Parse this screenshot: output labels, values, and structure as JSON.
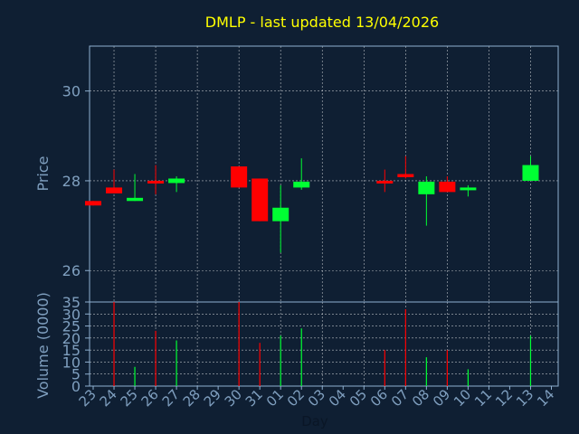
{
  "chart_data": {
    "type": "candlestick",
    "title": "DMLP - last updated 13/04/2026",
    "xlabel": "Day",
    "ylabel": "Price",
    "volume_label": "Volume (0000)",
    "grid": true,
    "price_ylim": [
      25.3,
      31.0
    ],
    "price_ticks": [
      "26",
      "28",
      "30"
    ],
    "volume_ylim": [
      0,
      35
    ],
    "volume_ticks": [
      "0",
      "5",
      "10",
      "15",
      "20",
      "25",
      "30",
      "35"
    ],
    "days": [
      "23",
      "24",
      "25",
      "26",
      "27",
      "28",
      "29",
      "30",
      "31",
      "01",
      "02",
      "03",
      "04",
      "05",
      "06",
      "07",
      "08",
      "09",
      "10",
      "11",
      "12",
      "13",
      "14"
    ],
    "candles": [
      {
        "day": "23",
        "open": 27.55,
        "close": 27.45,
        "high": 27.55,
        "low": 27.45,
        "volume": 0
      },
      {
        "day": "24",
        "open": 27.85,
        "close": 27.72,
        "high": 28.25,
        "low": 27.72,
        "volume": 35
      },
      {
        "day": "25",
        "open": 27.55,
        "close": 27.62,
        "high": 28.15,
        "low": 27.55,
        "volume": 8
      },
      {
        "day": "26",
        "open": 28.0,
        "close": 27.95,
        "high": 28.35,
        "low": 27.7,
        "volume": 23
      },
      {
        "day": "27",
        "open": 27.95,
        "close": 28.05,
        "high": 28.1,
        "low": 27.75,
        "volume": 19
      },
      {
        "day": "30",
        "open": 28.32,
        "close": 27.85,
        "high": 28.32,
        "low": 27.85,
        "volume": 35
      },
      {
        "day": "31",
        "open": 28.05,
        "close": 27.1,
        "high": 28.05,
        "low": 27.1,
        "volume": 18
      },
      {
        "day": "01",
        "open": 27.1,
        "close": 27.4,
        "high": 27.9,
        "low": 26.4,
        "volume": 21
      },
      {
        "day": "02",
        "open": 27.85,
        "close": 27.98,
        "high": 28.5,
        "low": 27.8,
        "volume": 24
      },
      {
        "day": "06",
        "open": 28.0,
        "close": 27.98,
        "high": 28.25,
        "low": 27.75,
        "volume": 15
      },
      {
        "day": "07",
        "open": 28.15,
        "close": 28.08,
        "high": 28.55,
        "low": 28.05,
        "volume": 32
      },
      {
        "day": "08",
        "open": 27.7,
        "close": 27.98,
        "high": 28.1,
        "low": 27.0,
        "volume": 12
      },
      {
        "day": "09",
        "open": 27.98,
        "close": 27.75,
        "high": 28.1,
        "low": 27.75,
        "volume": 15
      },
      {
        "day": "10",
        "open": 27.82,
        "close": 27.85,
        "high": 27.9,
        "low": 27.65,
        "volume": 7
      },
      {
        "day": "13",
        "open": 28.0,
        "close": 28.35,
        "high": 28.55,
        "low": 28.0,
        "volume": 21
      }
    ],
    "colors": {
      "background": "#0f1f33",
      "up": "#00ff33",
      "down": "#ff0000",
      "axis": "#8fb0d0",
      "label": "#7f9fbf",
      "title": "#ffff00",
      "grid": "#ffffff"
    }
  }
}
